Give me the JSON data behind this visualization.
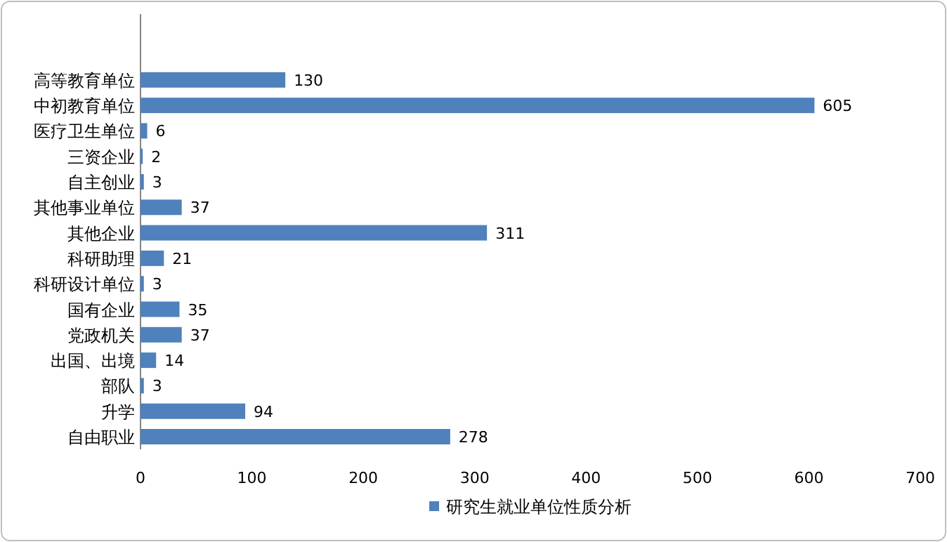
{
  "chart_data": {
    "type": "bar",
    "orientation": "horizontal",
    "categories": [
      "高等教育单位",
      "中初教育单位",
      "医疗卫生单位",
      "三资企业",
      "自主创业",
      "其他事业单位",
      "其他企业",
      "科研助理",
      "科研设计单位",
      "国有企业",
      "党政机关",
      "出国、出境",
      "部队",
      "升学",
      "自由职业"
    ],
    "series": [
      {
        "name": "研究生就业单位性质分析",
        "color": "#4f81bd",
        "values": [
          130,
          605,
          6,
          2,
          3,
          37,
          311,
          21,
          3,
          35,
          37,
          14,
          3,
          94,
          278
        ]
      }
    ],
    "xlim": [
      0,
      700
    ],
    "xticks": [
      0,
      100,
      200,
      300,
      400,
      500,
      600,
      700
    ],
    "data_labels": true,
    "legend": "bottom"
  }
}
